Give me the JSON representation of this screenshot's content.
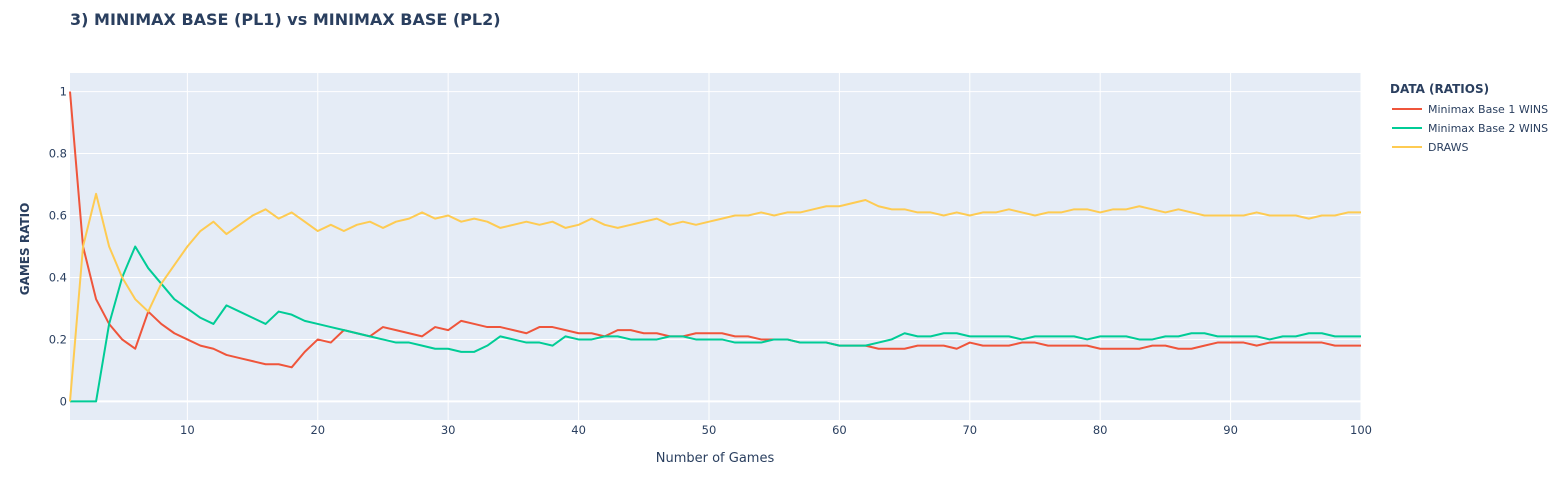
{
  "chart_data": {
    "type": "line",
    "title": "3) MINIMAX BASE (PL1) vs MINIMAX BASE (PL2)",
    "xlabel": "Number of Games",
    "ylabel": "GAMES RATIO",
    "xlim": [
      1,
      100
    ],
    "ylim": [
      -0.06,
      1.06
    ],
    "grid": true,
    "x_ticks": [
      10,
      20,
      30,
      40,
      50,
      60,
      70,
      80,
      90,
      100
    ],
    "y_ticks": [
      0,
      0.2,
      0.4,
      0.6,
      0.8,
      1
    ],
    "y_tick_labels": [
      "0",
      "0.2",
      "0.4",
      "0.6",
      "0.8",
      "1"
    ],
    "legend": {
      "title": "DATA (RATIOS)",
      "position": "right"
    },
    "series": [
      {
        "name": "Minimax Base 1 WINS",
        "color": "#EF553B",
        "values": [
          1.0,
          0.5,
          0.33,
          0.25,
          0.2,
          0.17,
          0.29,
          0.25,
          0.22,
          0.2,
          0.18,
          0.17,
          0.15,
          0.14,
          0.13,
          0.12,
          0.12,
          0.11,
          0.16,
          0.2,
          0.19,
          0.23,
          0.22,
          0.21,
          0.24,
          0.23,
          0.22,
          0.21,
          0.24,
          0.23,
          0.26,
          0.25,
          0.24,
          0.24,
          0.23,
          0.22,
          0.24,
          0.24,
          0.23,
          0.22,
          0.22,
          0.21,
          0.23,
          0.23,
          0.22,
          0.22,
          0.21,
          0.21,
          0.22,
          0.22,
          0.22,
          0.21,
          0.21,
          0.2,
          0.2,
          0.2,
          0.19,
          0.19,
          0.19,
          0.18,
          0.18,
          0.18,
          0.17,
          0.17,
          0.17,
          0.18,
          0.18,
          0.18,
          0.17,
          0.19,
          0.18,
          0.18,
          0.18,
          0.19,
          0.19,
          0.18,
          0.18,
          0.18,
          0.18,
          0.17,
          0.17,
          0.17,
          0.17,
          0.18,
          0.18,
          0.17,
          0.17,
          0.18,
          0.19,
          0.19,
          0.19,
          0.18,
          0.19,
          0.19,
          0.19,
          0.19,
          0.19,
          0.18,
          0.18,
          0.18
        ]
      },
      {
        "name": "Minimax Base 2 WINS",
        "color": "#00CC96",
        "values": [
          0.0,
          0.0,
          0.0,
          0.25,
          0.4,
          0.5,
          0.43,
          0.38,
          0.33,
          0.3,
          0.27,
          0.25,
          0.31,
          0.29,
          0.27,
          0.25,
          0.29,
          0.28,
          0.26,
          0.25,
          0.24,
          0.23,
          0.22,
          0.21,
          0.2,
          0.19,
          0.19,
          0.18,
          0.17,
          0.17,
          0.16,
          0.16,
          0.18,
          0.21,
          0.2,
          0.19,
          0.19,
          0.18,
          0.21,
          0.2,
          0.2,
          0.21,
          0.21,
          0.2,
          0.2,
          0.2,
          0.21,
          0.21,
          0.2,
          0.2,
          0.2,
          0.19,
          0.19,
          0.19,
          0.2,
          0.2,
          0.19,
          0.19,
          0.19,
          0.18,
          0.18,
          0.18,
          0.19,
          0.2,
          0.22,
          0.21,
          0.21,
          0.22,
          0.22,
          0.21,
          0.21,
          0.21,
          0.21,
          0.2,
          0.21,
          0.21,
          0.21,
          0.21,
          0.2,
          0.21,
          0.21,
          0.21,
          0.2,
          0.2,
          0.21,
          0.21,
          0.22,
          0.22,
          0.21,
          0.21,
          0.21,
          0.21,
          0.2,
          0.21,
          0.21,
          0.22,
          0.22,
          0.21,
          0.21,
          0.21
        ]
      },
      {
        "name": "DRAWS",
        "color": "#FECB52",
        "values": [
          0.0,
          0.5,
          0.67,
          0.5,
          0.4,
          0.33,
          0.29,
          0.38,
          0.44,
          0.5,
          0.55,
          0.58,
          0.54,
          0.57,
          0.6,
          0.62,
          0.59,
          0.61,
          0.58,
          0.55,
          0.57,
          0.55,
          0.57,
          0.58,
          0.56,
          0.58,
          0.59,
          0.61,
          0.59,
          0.6,
          0.58,
          0.59,
          0.58,
          0.56,
          0.57,
          0.58,
          0.57,
          0.58,
          0.56,
          0.57,
          0.59,
          0.57,
          0.56,
          0.57,
          0.58,
          0.59,
          0.57,
          0.58,
          0.57,
          0.58,
          0.59,
          0.6,
          0.6,
          0.61,
          0.6,
          0.61,
          0.61,
          0.62,
          0.63,
          0.63,
          0.64,
          0.65,
          0.63,
          0.62,
          0.62,
          0.61,
          0.61,
          0.6,
          0.61,
          0.6,
          0.61,
          0.61,
          0.62,
          0.61,
          0.6,
          0.61,
          0.61,
          0.62,
          0.62,
          0.61,
          0.62,
          0.62,
          0.63,
          0.62,
          0.61,
          0.62,
          0.61,
          0.6,
          0.6,
          0.6,
          0.6,
          0.61,
          0.6,
          0.6,
          0.6,
          0.59,
          0.6,
          0.6,
          0.61,
          0.61
        ]
      }
    ]
  }
}
